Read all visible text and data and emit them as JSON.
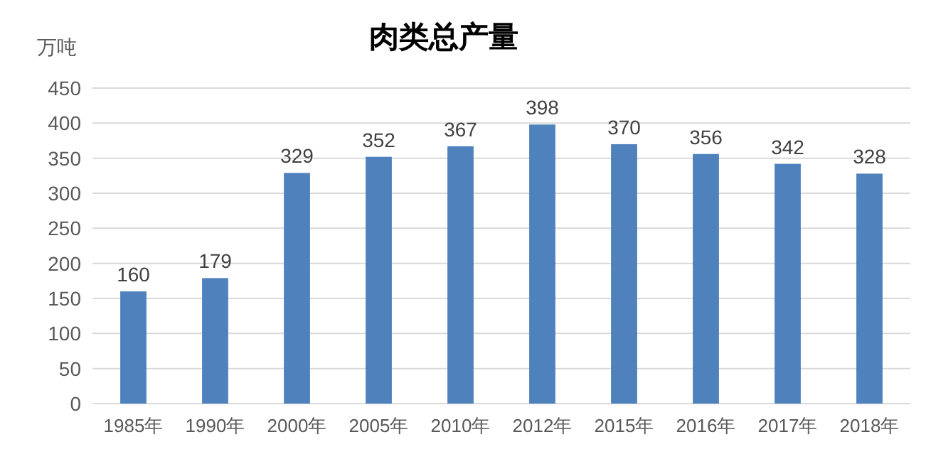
{
  "chart_data": {
    "type": "bar",
    "title": "肉类总产量",
    "ylabel": "万吨",
    "categories": [
      "1985年",
      "1990年",
      "2000年",
      "2005年",
      "2010年",
      "2012年",
      "2015年",
      "2016年",
      "2017年",
      "2018年"
    ],
    "values": [
      160,
      179,
      329,
      352,
      367,
      398,
      370,
      356,
      342,
      328
    ],
    "color": "#4f81bd",
    "ylim": [
      0,
      450
    ],
    "yticks": [
      0,
      50,
      100,
      150,
      200,
      250,
      300,
      350,
      400,
      450
    ],
    "grid": "y",
    "data_labels": true
  }
}
